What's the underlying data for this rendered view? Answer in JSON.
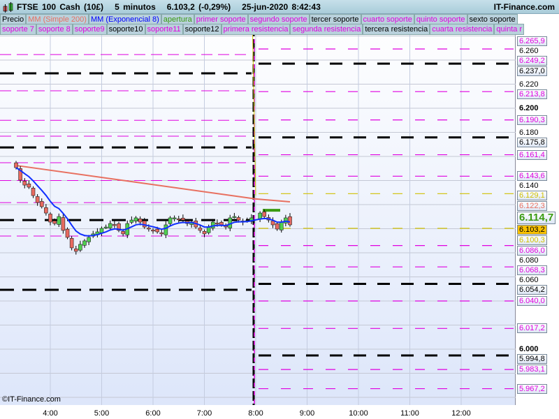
{
  "header": {
    "title": "FTSE 100 Cash (10£)",
    "timeframe": "5 minutos",
    "price": "6.103,2 (-0,29%)",
    "datetime": "25-jun-2020 8:42:43",
    "site": "IT-Finance.com"
  },
  "legend_row1": [
    {
      "label": "Precio",
      "color": "#000000"
    },
    {
      "label": "MM (Simple 200)",
      "color": "#e87060"
    },
    {
      "label": "MM (Exponencial 8)",
      "color": "#0000ff"
    },
    {
      "label": "apertura",
      "color": "#3a9a10"
    },
    {
      "label": "primer soporte",
      "color": "#e000e0"
    },
    {
      "label": "segundo soporte",
      "color": "#e000e0"
    },
    {
      "label": "tercer soporte",
      "color": "#000000"
    },
    {
      "label": "cuarto soporte",
      "color": "#e000e0"
    },
    {
      "label": "quinto soporte",
      "color": "#e000e0"
    },
    {
      "label": "sexto soporte",
      "color": "#000000"
    }
  ],
  "legend_row2": [
    {
      "label": "soporte 7",
      "color": "#e000e0"
    },
    {
      "label": "soporte 8",
      "color": "#e000e0"
    },
    {
      "label": "soporte9",
      "color": "#e000e0"
    },
    {
      "label": "soporte10",
      "color": "#000000"
    },
    {
      "label": "soporte11",
      "color": "#e000e0"
    },
    {
      "label": "soporte12",
      "color": "#000000"
    },
    {
      "label": "primera resistencia",
      "color": "#e000e0"
    },
    {
      "label": "segunda resistencia",
      "color": "#e000e0"
    },
    {
      "label": "tercera resistencia",
      "color": "#000000"
    },
    {
      "label": "cuarta resistencia",
      "color": "#e000e0"
    },
    {
      "label": "quinta r",
      "color": "#e000e0"
    }
  ],
  "copyright": "©IT-Finance.com",
  "chart_data": {
    "type": "candlestick",
    "x_ticks": [
      "4:00",
      "5:00",
      "6:00",
      "7:00",
      "8:00",
      "9:00",
      "10:00",
      "11:00",
      "12:00"
    ],
    "y_ticks": [
      "6.260",
      "6.220",
      "6.200",
      "6.180",
      "6.140",
      "6.080",
      "6.060",
      "6.000"
    ],
    "y_range": [
      5.955,
      6.272
    ],
    "grid": true,
    "start_time": "3:20",
    "interval_minutes": 5,
    "closes": [
      6.1507,
      6.1403,
      6.1362,
      6.1345,
      6.1275,
      6.1217,
      6.1183,
      6.113,
      6.1055,
      6.1043,
      6.1101,
      6.0986,
      6.0928,
      6.0841,
      6.0812,
      6.087,
      6.0899,
      6.0928,
      6.0957,
      6.0974,
      6.1003,
      6.1014,
      6.1043,
      6.1032,
      6.0986,
      6.0957,
      6.1043,
      6.1072,
      6.109,
      6.1055,
      6.1014,
      6.0997,
      6.0986,
      6.0974,
      6.0957,
      6.1032,
      6.109,
      6.109,
      6.1078,
      6.1072,
      6.1043,
      6.1055,
      6.1014,
      6.0986,
      6.0957,
      6.1014,
      6.1055,
      6.1043,
      6.1032,
      6.1014,
      6.109,
      6.1101,
      6.1072,
      6.1055,
      6.1067,
      6.109,
      6.113,
      6.1101,
      6.1072,
      6.1032,
      6.0997,
      6.1055,
      6.109,
      6.1032
    ],
    "ma200": [
      [
        "3:20",
        6.1525
      ],
      [
        "8:00",
        6.1247
      ],
      [
        "8:40",
        6.1223
      ]
    ],
    "prior_levels": {
      "magenta": [
        6.2446,
        6.2145,
        6.19,
        6.1768,
        6.1548,
        6.14,
        6.1217,
        6.0939
      ],
      "black": [
        6.229,
        6.1675,
        6.1072,
        6.0493
      ]
    },
    "levels": [
      {
        "value": "6.265,9",
        "color": "#e000e0"
      },
      {
        "value": "6.249,2",
        "color": "#e000e0"
      },
      {
        "value": "6.237,0",
        "color": "#000000"
      },
      {
        "value": "6.213,8",
        "color": "#e000e0"
      },
      {
        "value": "6.190,3",
        "color": "#e000e0"
      },
      {
        "value": "6.175,8",
        "color": "#000000"
      },
      {
        "value": "6.161,4",
        "color": "#e000e0"
      },
      {
        "value": "6.143,6",
        "color": "#e000e0"
      },
      {
        "value": "6.129,1",
        "color": "#d0c000"
      },
      {
        "value": "6.122,3",
        "color": "#e87060"
      },
      {
        "value": "6.114,7",
        "color": "#3a9a10"
      },
      {
        "value": "6.103,2",
        "color": "#000000"
      },
      {
        "value": "6.100,3",
        "color": "#d0c000"
      },
      {
        "value": "6.086,0",
        "color": "#e000e0"
      },
      {
        "value": "6.068,3",
        "color": "#e000e0"
      },
      {
        "value": "6.054,2",
        "color": "#000000"
      },
      {
        "value": "6.040,0",
        "color": "#e000e0"
      },
      {
        "value": "6.017,2",
        "color": "#e000e0"
      },
      {
        "value": "5.994,8",
        "color": "#000000"
      },
      {
        "value": "5.983,1",
        "color": "#e000e0"
      },
      {
        "value": "5.967,2",
        "color": "#e000e0"
      }
    ]
  }
}
